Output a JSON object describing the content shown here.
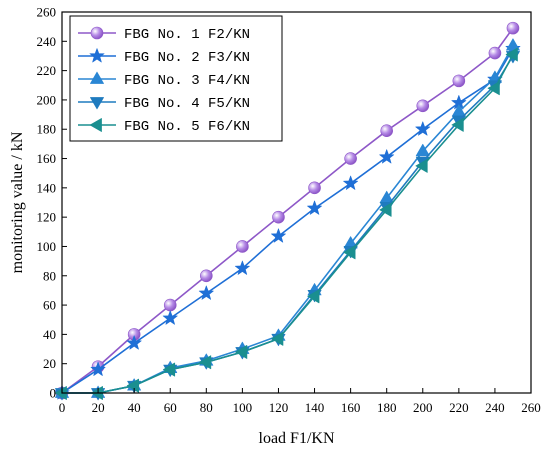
{
  "chart_data": {
    "type": "line",
    "xlabel": "load F1/KN",
    "ylabel": "monitoring value / kN",
    "xlim": [
      0,
      260
    ],
    "ylim": [
      0,
      260
    ],
    "xticks": [
      0,
      20,
      40,
      60,
      80,
      100,
      120,
      140,
      160,
      180,
      200,
      220,
      240,
      260
    ],
    "yticks": [
      0,
      20,
      40,
      60,
      80,
      100,
      120,
      140,
      160,
      180,
      200,
      220,
      240,
      260
    ],
    "x": [
      0,
      20,
      40,
      60,
      80,
      100,
      120,
      140,
      160,
      180,
      200,
      220,
      240,
      250
    ],
    "grid": false,
    "legend_position": "top-left",
    "series": [
      {
        "name": "FBG No. 1 F2/KN",
        "marker": "circle",
        "color": "#8e58c8",
        "values": [
          0,
          18,
          40,
          60,
          80,
          100,
          120,
          140,
          160,
          179,
          196,
          213,
          232,
          249
        ]
      },
      {
        "name": "FBG No. 2 F3/KN",
        "marker": "star",
        "color": "#1f6fd6",
        "values": [
          0,
          16,
          34,
          51,
          68,
          85,
          107,
          126,
          143,
          161,
          180,
          198,
          214,
          235
        ]
      },
      {
        "name": "FBG No. 3 F4/KN",
        "marker": "triangle-up",
        "color": "#2a86d4",
        "values": [
          0,
          0,
          5,
          17,
          22,
          30,
          39,
          70,
          102,
          133,
          165,
          192,
          215,
          237
        ]
      },
      {
        "name": "FBG No. 4 F5/KN",
        "marker": "triangle-down",
        "color": "#1f7bbf",
        "values": [
          0,
          0,
          5,
          16,
          21,
          28,
          37,
          67,
          97,
          127,
          158,
          186,
          210,
          230
        ]
      },
      {
        "name": "FBG No. 5 F6/KN",
        "marker": "triangle-left",
        "color": "#1a8f90",
        "values": [
          0,
          0,
          5,
          16,
          21,
          28,
          37,
          66,
          96,
          125,
          155,
          183,
          208,
          231
        ]
      }
    ]
  }
}
